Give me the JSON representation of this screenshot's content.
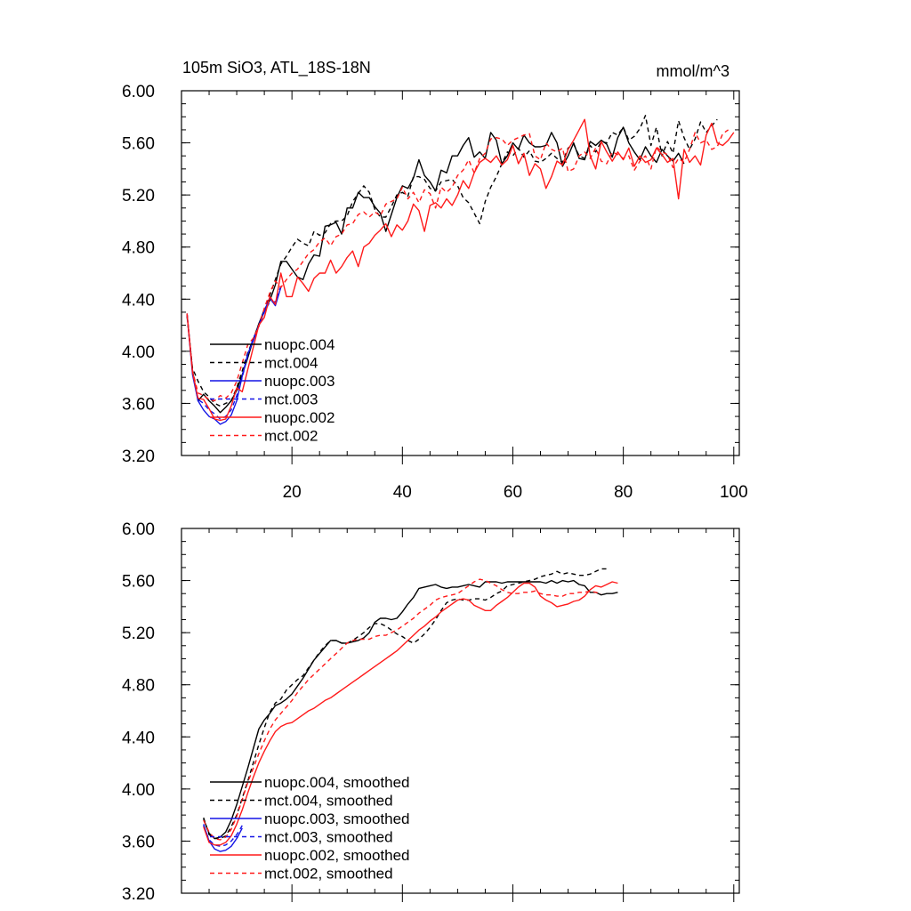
{
  "colors": {
    "black": "#000000",
    "blue": "#1414e6",
    "red": "#ff1a1a"
  },
  "top_panel": {
    "title": "105m SiO3, ATL_18S-18N",
    "units": "mmol/m^3"
  },
  "chart_data": [
    {
      "type": "line",
      "panel": "top",
      "title": "105m SiO3, ATL_18S-18N",
      "units": "mmol/m^3",
      "xlim": [
        0,
        101
      ],
      "ylim": [
        3.2,
        6.0
      ],
      "x_ticks": [
        20,
        40,
        60,
        80,
        100
      ],
      "x_tick_labels": [
        "20",
        "40",
        "60",
        "80",
        "100"
      ],
      "y_ticks": [
        3.2,
        3.6,
        4.0,
        4.4,
        4.8,
        5.2,
        5.6,
        6.0
      ],
      "y_tick_labels": [
        "3.20",
        "3.60",
        "4.00",
        "4.40",
        "4.80",
        "5.20",
        "5.60",
        "6.00"
      ],
      "legend_position": "lower-left",
      "series": [
        {
          "name": "nuopc.004",
          "color": "#000000",
          "dash": "solid",
          "x_start": 1,
          "values": [
            4.29,
            3.85,
            3.62,
            3.67,
            3.62,
            3.58,
            3.53,
            3.57,
            3.62,
            3.7,
            3.82,
            3.95,
            4.09,
            4.21,
            4.32,
            4.39,
            4.51,
            4.69,
            4.69,
            4.63,
            4.57,
            4.55,
            4.67,
            4.74,
            4.73,
            4.96,
            4.97,
            4.99,
            4.9,
            5.1,
            5.1,
            5.22,
            5.18,
            5.18,
            5.11,
            5.06,
            4.92,
            5.05,
            5.18,
            5.27,
            5.25,
            5.33,
            5.47,
            5.35,
            5.3,
            5.23,
            5.39,
            5.37,
            5.5,
            5.5,
            5.58,
            5.64,
            5.49,
            5.53,
            5.48,
            5.68,
            5.62,
            5.44,
            5.5,
            5.6,
            5.55,
            5.66,
            5.6,
            5.57,
            5.57,
            5.58,
            5.68,
            5.6,
            5.42,
            5.5,
            5.6,
            5.48,
            5.47,
            5.61,
            5.58,
            5.62,
            5.59,
            5.49,
            5.64,
            5.72,
            5.6,
            5.53,
            5.47,
            5.57,
            5.5,
            5.45,
            5.55,
            5.5,
            5.46,
            5.52,
            5.44
          ]
        },
        {
          "name": "mct.004",
          "color": "#000000",
          "dash": "dash",
          "x_start": 1,
          "values": [
            4.27,
            3.87,
            3.77,
            3.69,
            3.65,
            3.6,
            3.58,
            3.6,
            3.62,
            3.72,
            3.85,
            3.99,
            4.09,
            4.21,
            4.3,
            4.43,
            4.55,
            4.67,
            4.73,
            4.8,
            4.86,
            4.83,
            4.81,
            4.92,
            4.89,
            4.91,
            4.98,
            5.0,
            5.0,
            5.04,
            5.15,
            5.21,
            5.27,
            5.22,
            5.09,
            5.03,
            5.03,
            5.11,
            5.2,
            5.22,
            5.19,
            5.34,
            5.34,
            5.32,
            5.25,
            5.23,
            5.3,
            5.31,
            5.32,
            5.27,
            5.18,
            5.14,
            5.06,
            4.98,
            5.15,
            5.26,
            5.34,
            5.44,
            5.53,
            5.5,
            5.56,
            5.49,
            5.54,
            5.46,
            5.45,
            5.48,
            5.52,
            5.48,
            5.45,
            5.56,
            5.59,
            5.5,
            5.48,
            5.58,
            5.53,
            5.61,
            5.6,
            5.68,
            5.66,
            5.72,
            5.62,
            5.65,
            5.71,
            5.81,
            5.58,
            5.72,
            5.5,
            5.61,
            5.52,
            5.77,
            5.64,
            5.55,
            5.63,
            5.76,
            5.68,
            5.73,
            5.78
          ]
        },
        {
          "name": "nuopc.003",
          "color": "#1414e6",
          "dash": "solid",
          "x_start": 1,
          "values": [
            4.29,
            3.82,
            3.62,
            3.55,
            3.5,
            3.48,
            3.44,
            3.46,
            3.51,
            3.62,
            3.81,
            3.98,
            4.08,
            4.2,
            4.31,
            4.41,
            4.35,
            4.49
          ]
        },
        {
          "name": "mct.003",
          "color": "#1414e6",
          "dash": "dash",
          "x_start": 1,
          "values": [
            4.29,
            3.85,
            3.63,
            3.6,
            3.55,
            3.52,
            3.48,
            3.5,
            3.55,
            3.66,
            3.8,
            3.97,
            4.1,
            4.19,
            4.3,
            4.38,
            4.38,
            4.5
          ]
        },
        {
          "name": "nuopc.002",
          "color": "#ff1a1a",
          "dash": "solid",
          "x_start": 1,
          "values": [
            4.29,
            3.84,
            3.64,
            3.63,
            3.56,
            3.48,
            3.47,
            3.48,
            3.58,
            3.72,
            3.69,
            3.86,
            4.03,
            4.2,
            4.26,
            4.42,
            4.36,
            4.6,
            4.42,
            4.42,
            4.57,
            4.52,
            4.46,
            4.56,
            4.6,
            4.6,
            4.7,
            4.6,
            4.65,
            4.72,
            4.77,
            4.65,
            4.8,
            4.83,
            4.89,
            4.93,
            4.98,
            4.88,
            4.97,
            4.93,
            5.0,
            5.13,
            5.08,
            4.92,
            5.12,
            5.14,
            5.1,
            5.17,
            5.12,
            5.2,
            5.31,
            5.25,
            5.37,
            5.45,
            5.48,
            5.45,
            5.5,
            5.43,
            5.47,
            5.58,
            5.44,
            5.52,
            5.35,
            5.44,
            5.4,
            5.25,
            5.34,
            5.46,
            5.43,
            5.55,
            5.62,
            5.7,
            5.78,
            5.5,
            5.4,
            5.61,
            5.53,
            5.46,
            5.53,
            5.47,
            5.56,
            5.42,
            5.5,
            5.45,
            5.47,
            5.56,
            5.51,
            5.45,
            5.48,
            5.17,
            5.55,
            5.45,
            5.5,
            5.43,
            5.66,
            5.75,
            5.6,
            5.58,
            5.62,
            5.68
          ]
        },
        {
          "name": "mct.002",
          "color": "#ff1a1a",
          "dash": "dash",
          "x_start": 1,
          "values": [
            4.29,
            3.85,
            3.68,
            3.66,
            3.63,
            3.62,
            3.66,
            3.64,
            3.68,
            3.77,
            3.91,
            4.05,
            4.1,
            4.19,
            4.33,
            4.45,
            4.54,
            4.49,
            4.55,
            4.6,
            4.63,
            4.69,
            4.75,
            4.78,
            4.84,
            4.87,
            4.81,
            4.88,
            4.9,
            4.97,
            4.98,
            5.05,
            5.07,
            5.03,
            5.07,
            5.04,
            5.13,
            5.15,
            5.17,
            5.26,
            5.17,
            5.22,
            5.14,
            5.24,
            5.21,
            5.1,
            5.26,
            5.22,
            5.26,
            5.35,
            5.39,
            5.47,
            5.37,
            5.48,
            5.52,
            5.63,
            5.64,
            5.63,
            5.58,
            5.62,
            5.64,
            5.66,
            5.67,
            5.5,
            5.47,
            5.6,
            5.55,
            5.53,
            5.56,
            5.38,
            5.4,
            5.5,
            5.53,
            5.48,
            5.56,
            5.46,
            5.44,
            5.53,
            5.51,
            5.48,
            5.5,
            5.39,
            5.46,
            5.5,
            5.4,
            5.57,
            5.53,
            5.51,
            5.41,
            5.48,
            5.45,
            5.55,
            5.68,
            5.6,
            5.62,
            5.55,
            5.57,
            5.67,
            5.7
          ]
        }
      ]
    },
    {
      "type": "line",
      "panel": "bottom",
      "title": "",
      "units": "",
      "xlim": [
        0,
        101
      ],
      "ylim": [
        3.2,
        6.0
      ],
      "x_ticks": [
        20,
        40,
        60,
        80,
        100
      ],
      "x_tick_labels": [],
      "y_ticks": [
        3.2,
        3.6,
        4.0,
        4.4,
        4.8,
        5.2,
        5.6,
        6.0
      ],
      "y_tick_labels": [
        "3.20",
        "3.60",
        "4.00",
        "4.40",
        "4.80",
        "5.20",
        "5.60",
        "6.00"
      ],
      "legend_position": "lower-left",
      "series": [
        {
          "name": "nuopc.004, smoothed",
          "color": "#000000",
          "dash": "solid",
          "x_start": 4,
          "values": [
            3.77,
            3.66,
            3.62,
            3.63,
            3.67,
            3.76,
            3.88,
            4.02,
            4.16,
            4.31,
            4.46,
            4.53,
            4.58,
            4.64,
            4.66,
            4.69,
            4.73,
            4.79,
            4.85,
            4.92,
            4.99,
            5.04,
            5.09,
            5.14,
            5.14,
            5.12,
            5.12,
            5.13,
            5.14,
            5.16,
            5.2,
            5.28,
            5.31,
            5.31,
            5.3,
            5.31,
            5.36,
            5.42,
            5.47,
            5.54,
            5.55,
            5.56,
            5.57,
            5.55,
            5.54,
            5.55,
            5.55,
            5.56,
            5.57,
            5.56,
            5.55,
            5.59,
            5.59,
            5.59,
            5.58,
            5.59,
            5.59,
            5.59,
            5.59,
            5.59,
            5.59,
            5.59,
            5.58,
            5.6,
            5.58,
            5.6,
            5.59,
            5.6,
            5.57,
            5.56,
            5.51,
            5.51,
            5.49,
            5.5,
            5.5,
            5.51
          ]
        },
        {
          "name": "mct.004, smoothed",
          "color": "#000000",
          "dash": "dash",
          "x_start": 4,
          "values": [
            3.78,
            3.65,
            3.62,
            3.62,
            3.64,
            3.71,
            3.8,
            3.93,
            4.06,
            4.2,
            4.34,
            4.47,
            4.59,
            4.66,
            4.69,
            4.76,
            4.8,
            4.84,
            4.87,
            4.93,
            4.99,
            5.05,
            5.1,
            5.14,
            5.14,
            5.12,
            5.12,
            5.14,
            5.17,
            5.2,
            5.24,
            5.27,
            5.27,
            5.25,
            5.22,
            5.19,
            5.17,
            5.14,
            5.12,
            5.15,
            5.19,
            5.24,
            5.3,
            5.37,
            5.43,
            5.45,
            5.46,
            5.45,
            5.45,
            5.46,
            5.46,
            5.45,
            5.47,
            5.5,
            5.52,
            5.56,
            5.57,
            5.58,
            5.59,
            5.6,
            5.61,
            5.63,
            5.64,
            5.65,
            5.67,
            5.65,
            5.66,
            5.65,
            5.64,
            5.64,
            5.65,
            5.67,
            5.69,
            5.69
          ]
        },
        {
          "name": "nuopc.003, smoothed",
          "color": "#1414e6",
          "dash": "solid",
          "x_start": 4,
          "values": [
            3.73,
            3.6,
            3.54,
            3.52,
            3.53,
            3.56,
            3.62,
            3.7
          ]
        },
        {
          "name": "mct.003, smoothed",
          "color": "#1414e6",
          "dash": "dash",
          "x_start": 4,
          "values": [
            3.72,
            3.61,
            3.57,
            3.56,
            3.57,
            3.6,
            3.65,
            3.72
          ]
        },
        {
          "name": "nuopc.002, smoothed",
          "color": "#ff1a1a",
          "dash": "solid",
          "x_start": 4,
          "values": [
            3.71,
            3.59,
            3.57,
            3.57,
            3.59,
            3.64,
            3.73,
            3.84,
            3.97,
            4.09,
            4.2,
            4.29,
            4.37,
            4.44,
            4.48,
            4.5,
            4.51,
            4.54,
            4.57,
            4.6,
            4.62,
            4.65,
            4.68,
            4.7,
            4.73,
            4.76,
            4.79,
            4.82,
            4.85,
            4.88,
            4.91,
            4.94,
            4.97,
            5.0,
            5.03,
            5.06,
            5.1,
            5.14,
            5.18,
            5.22,
            5.25,
            5.29,
            5.32,
            5.36,
            5.39,
            5.42,
            5.45,
            5.46,
            5.45,
            5.41,
            5.39,
            5.37,
            5.37,
            5.41,
            5.44,
            5.47,
            5.51,
            5.55,
            5.58,
            5.58,
            5.55,
            5.48,
            5.45,
            5.43,
            5.4,
            5.41,
            5.42,
            5.44,
            5.45,
            5.48,
            5.53,
            5.56,
            5.55,
            5.57,
            5.59,
            5.58
          ]
        },
        {
          "name": "mct.002, smoothed",
          "color": "#ff1a1a",
          "dash": "dash",
          "x_start": 4,
          "values": [
            3.76,
            3.67,
            3.62,
            3.61,
            3.63,
            3.69,
            3.79,
            3.92,
            4.05,
            4.16,
            4.27,
            4.37,
            4.46,
            4.53,
            4.58,
            4.63,
            4.68,
            4.74,
            4.79,
            4.84,
            4.88,
            4.92,
            4.96,
            5.0,
            5.04,
            5.08,
            5.12,
            5.14,
            5.15,
            5.15,
            5.15,
            5.17,
            5.18,
            5.18,
            5.2,
            5.22,
            5.25,
            5.28,
            5.31,
            5.35,
            5.38,
            5.41,
            5.45,
            5.47,
            5.48,
            5.49,
            5.5,
            5.53,
            5.56,
            5.59,
            5.61,
            5.6,
            5.58,
            5.56,
            5.53,
            5.51,
            5.5,
            5.5,
            5.51,
            5.51,
            5.52,
            5.5,
            5.49,
            5.49,
            5.48,
            5.48,
            5.5,
            5.5,
            5.51,
            5.51,
            5.52,
            5.51,
            5.5
          ]
        }
      ]
    }
  ]
}
